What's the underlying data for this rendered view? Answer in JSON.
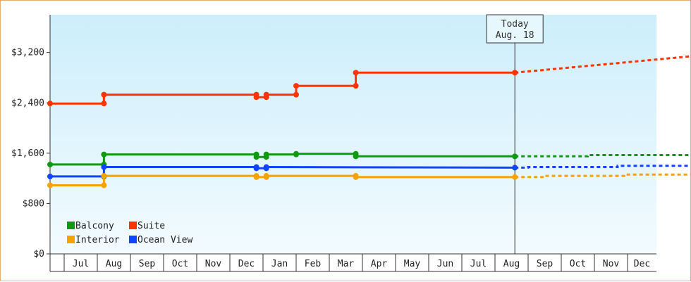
{
  "chart_data": {
    "type": "line",
    "title": "",
    "xlabel": "",
    "ylabel": "",
    "ylim": [
      0,
      3800
    ],
    "y_ticks": [
      {
        "value": 0,
        "label": "$0"
      },
      {
        "value": 800,
        "label": "$800"
      },
      {
        "value": 1600,
        "label": "$1,600"
      },
      {
        "value": 2400,
        "label": "$2,400"
      },
      {
        "value": 3200,
        "label": "$3,200"
      }
    ],
    "x_range": [
      0,
      18.9
    ],
    "x_ticks": [
      {
        "label": "Jul",
        "index": 0
      },
      {
        "label": "Aug",
        "index": 1
      },
      {
        "label": "Sep",
        "index": 2
      },
      {
        "label": "Oct",
        "index": 3
      },
      {
        "label": "Nov",
        "index": 4
      },
      {
        "label": "Dec",
        "index": 5
      },
      {
        "label": "Jan",
        "index": 6
      },
      {
        "label": "Feb",
        "index": 7
      },
      {
        "label": "Mar",
        "index": 8
      },
      {
        "label": "Apr",
        "index": 9
      },
      {
        "label": "May",
        "index": 10
      },
      {
        "label": "Jun",
        "index": 11
      },
      {
        "label": "Jul",
        "index": 12
      },
      {
        "label": "Aug",
        "index": 13
      },
      {
        "label": "Sep",
        "index": 14
      },
      {
        "label": "Oct",
        "index": 15
      },
      {
        "label": "Nov",
        "index": 16
      },
      {
        "label": "Dec",
        "index": 17
      }
    ],
    "today": {
      "x": 13.6,
      "line1": "Today",
      "line2": "Aug. 18"
    },
    "grid": false,
    "background": "light blue gradient",
    "legend_position": "bottom-left",
    "series": [
      {
        "name": "Suite",
        "color": "#ff3300",
        "points": [
          [
            -0.4,
            2390
          ],
          [
            1.2,
            2390
          ],
          [
            1.2,
            2530
          ],
          [
            5.8,
            2530
          ],
          [
            5.8,
            2490
          ],
          [
            6.1,
            2490
          ],
          [
            6.1,
            2530
          ],
          [
            7.0,
            2530
          ],
          [
            7.0,
            2670
          ],
          [
            8.8,
            2670
          ],
          [
            8.8,
            2880
          ],
          [
            13.6,
            2880
          ]
        ],
        "projection": [
          [
            13.6,
            2880
          ],
          [
            18.9,
            3140
          ]
        ]
      },
      {
        "name": "Balcony",
        "color": "#119911",
        "points": [
          [
            -0.4,
            1420
          ],
          [
            1.2,
            1420
          ],
          [
            1.2,
            1580
          ],
          [
            5.8,
            1580
          ],
          [
            5.8,
            1540
          ],
          [
            6.1,
            1540
          ],
          [
            6.1,
            1580
          ],
          [
            7.0,
            1580
          ],
          [
            7.0,
            1590
          ],
          [
            8.8,
            1590
          ],
          [
            8.8,
            1550
          ],
          [
            13.6,
            1550
          ]
        ],
        "projection": [
          [
            13.6,
            1550
          ],
          [
            15.8,
            1550
          ],
          [
            15.8,
            1570
          ],
          [
            18.9,
            1570
          ]
        ]
      },
      {
        "name": "Ocean View",
        "color": "#1144ff",
        "points": [
          [
            -0.4,
            1230
          ],
          [
            1.2,
            1230
          ],
          [
            1.2,
            1380
          ],
          [
            5.8,
            1380
          ],
          [
            5.8,
            1360
          ],
          [
            6.1,
            1360
          ],
          [
            6.1,
            1380
          ],
          [
            13.6,
            1370
          ]
        ],
        "projection": [
          [
            13.6,
            1370
          ],
          [
            14.0,
            1370
          ],
          [
            14.0,
            1380
          ],
          [
            16.7,
            1380
          ],
          [
            16.7,
            1400
          ],
          [
            18.9,
            1400
          ]
        ]
      },
      {
        "name": "Interior",
        "color": "#f5a300",
        "points": [
          [
            -0.4,
            1090
          ],
          [
            1.2,
            1090
          ],
          [
            1.2,
            1240
          ],
          [
            5.8,
            1240
          ],
          [
            5.8,
            1220
          ],
          [
            6.1,
            1220
          ],
          [
            6.1,
            1240
          ],
          [
            8.8,
            1240
          ],
          [
            8.8,
            1220
          ],
          [
            13.6,
            1220
          ]
        ],
        "projection": [
          [
            13.6,
            1220
          ],
          [
            14.5,
            1220
          ],
          [
            14.5,
            1240
          ],
          [
            16.9,
            1240
          ],
          [
            16.9,
            1260
          ],
          [
            18.9,
            1260
          ]
        ]
      }
    ],
    "legend": [
      {
        "name": "Balcony",
        "color": "#119911"
      },
      {
        "name": "Suite",
        "color": "#ff3300"
      },
      {
        "name": "Interior",
        "color": "#f5a300"
      },
      {
        "name": "Ocean View",
        "color": "#1144ff"
      }
    ]
  }
}
